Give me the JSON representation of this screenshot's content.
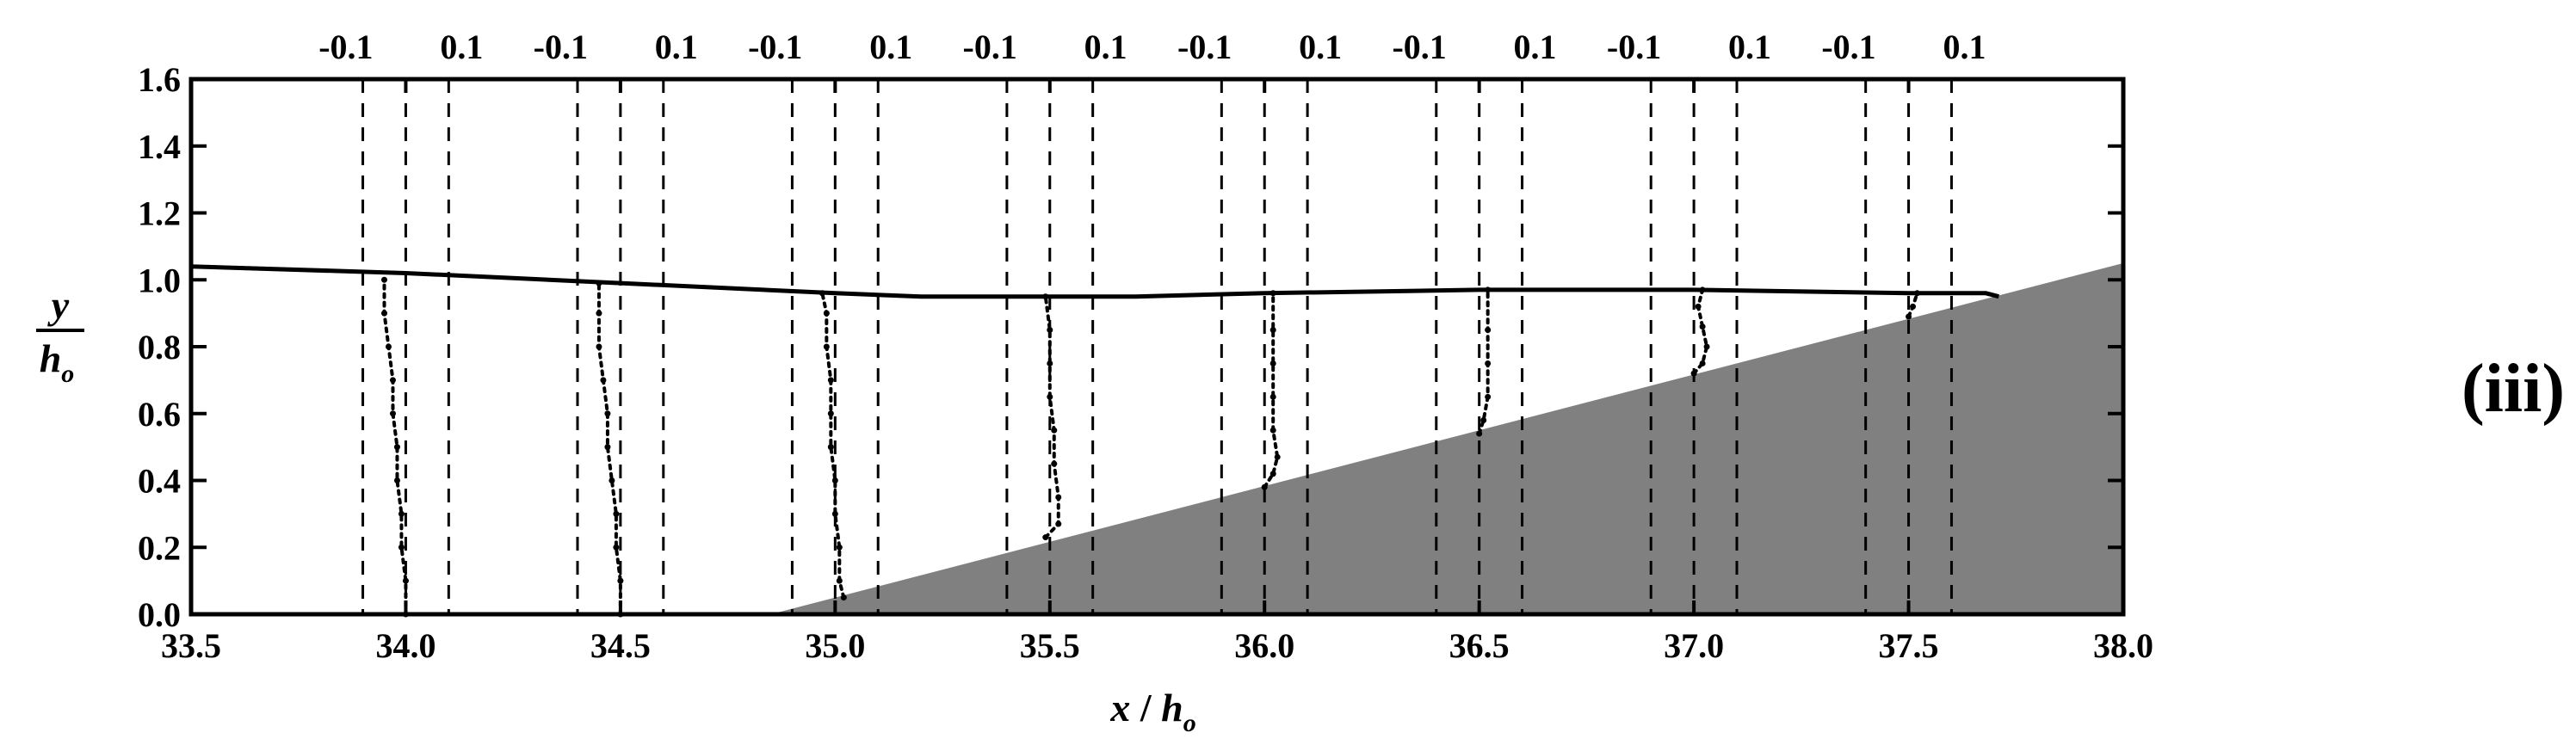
{
  "chart_data": {
    "type": "line",
    "xlabel": {
      "var": "x",
      "sep": " / ",
      "sub_var": "h",
      "sub": "o"
    },
    "ylabel": {
      "var": "y",
      "sub_var": "h",
      "sub": "o"
    },
    "panel_label": "(iii)",
    "xlim": [
      33.5,
      38.0
    ],
    "ylim": [
      0.0,
      1.6
    ],
    "x_ticks": [
      "33.5",
      "34.0",
      "34.5",
      "35.0",
      "35.5",
      "36.0",
      "36.5",
      "37.0",
      "37.5",
      "38.0"
    ],
    "y_ticks": [
      "0.0",
      "0.2",
      "0.4",
      "0.6",
      "0.8",
      "1.0",
      "1.2",
      "1.4",
      "1.6"
    ],
    "grid": false,
    "colors": {
      "bed_fill": "#808080",
      "line": "#000000"
    },
    "free_surface": {
      "x": [
        33.5,
        34.0,
        34.5,
        35.0,
        35.2,
        35.5,
        35.7,
        36.0,
        36.5,
        37.0,
        37.5,
        37.68,
        37.71
      ],
      "y": [
        1.04,
        1.02,
        0.99,
        0.96,
        0.95,
        0.95,
        0.95,
        0.96,
        0.97,
        0.97,
        0.96,
        0.96,
        0.95
      ]
    },
    "bed_profile": {
      "x": [
        33.5,
        34.85,
        38.0
      ],
      "y": [
        0.0,
        0.0,
        1.05
      ]
    },
    "profile_scale": {
      "labels": [
        "-0.1",
        "0.1"
      ],
      "values": [
        -0.1,
        0.1
      ]
    },
    "velocity_profiles": [
      {
        "station": 34.0,
        "points": [
          [
            0.0,
            0.0
          ],
          [
            0.0,
            0.1
          ],
          [
            -0.01,
            0.2
          ],
          [
            -0.01,
            0.3
          ],
          [
            -0.02,
            0.4
          ],
          [
            -0.02,
            0.5
          ],
          [
            -0.03,
            0.6
          ],
          [
            -0.03,
            0.7
          ],
          [
            -0.04,
            0.8
          ],
          [
            -0.05,
            0.9
          ],
          [
            -0.05,
            1.0
          ]
        ]
      },
      {
        "station": 34.5,
        "points": [
          [
            0.0,
            0.0
          ],
          [
            0.0,
            0.1
          ],
          [
            -0.01,
            0.2
          ],
          [
            -0.01,
            0.3
          ],
          [
            -0.02,
            0.4
          ],
          [
            -0.03,
            0.5
          ],
          [
            -0.03,
            0.6
          ],
          [
            -0.04,
            0.7
          ],
          [
            -0.05,
            0.8
          ],
          [
            -0.05,
            0.9
          ],
          [
            -0.05,
            0.99
          ]
        ]
      },
      {
        "station": 35.0,
        "points": [
          [
            0.02,
            0.05
          ],
          [
            0.01,
            0.1
          ],
          [
            0.01,
            0.2
          ],
          [
            0.0,
            0.3
          ],
          [
            0.0,
            0.4
          ],
          [
            -0.01,
            0.5
          ],
          [
            -0.01,
            0.6
          ],
          [
            -0.01,
            0.7
          ],
          [
            -0.02,
            0.8
          ],
          [
            -0.02,
            0.9
          ],
          [
            -0.03,
            0.96
          ]
        ]
      },
      {
        "station": 35.5,
        "points": [
          [
            -0.01,
            0.23
          ],
          [
            0.02,
            0.27
          ],
          [
            0.02,
            0.35
          ],
          [
            0.01,
            0.45
          ],
          [
            0.01,
            0.55
          ],
          [
            0.0,
            0.65
          ],
          [
            0.0,
            0.75
          ],
          [
            0.0,
            0.85
          ],
          [
            -0.01,
            0.95
          ]
        ]
      },
      {
        "station": 36.0,
        "points": [
          [
            0.0,
            0.38
          ],
          [
            0.02,
            0.42
          ],
          [
            0.03,
            0.47
          ],
          [
            0.02,
            0.55
          ],
          [
            0.02,
            0.65
          ],
          [
            0.02,
            0.75
          ],
          [
            0.02,
            0.85
          ],
          [
            0.02,
            0.96
          ]
        ]
      },
      {
        "station": 36.5,
        "points": [
          [
            0.0,
            0.54
          ],
          [
            0.01,
            0.58
          ],
          [
            0.02,
            0.65
          ],
          [
            0.02,
            0.75
          ],
          [
            0.02,
            0.85
          ],
          [
            0.02,
            0.97
          ]
        ]
      },
      {
        "station": 37.0,
        "points": [
          [
            0.0,
            0.72
          ],
          [
            0.02,
            0.75
          ],
          [
            0.03,
            0.8
          ],
          [
            0.02,
            0.86
          ],
          [
            0.01,
            0.92
          ],
          [
            0.02,
            0.97
          ]
        ]
      },
      {
        "station": 37.5,
        "points": [
          [
            0.0,
            0.89
          ],
          [
            0.01,
            0.92
          ],
          [
            0.02,
            0.96
          ]
        ]
      }
    ]
  }
}
